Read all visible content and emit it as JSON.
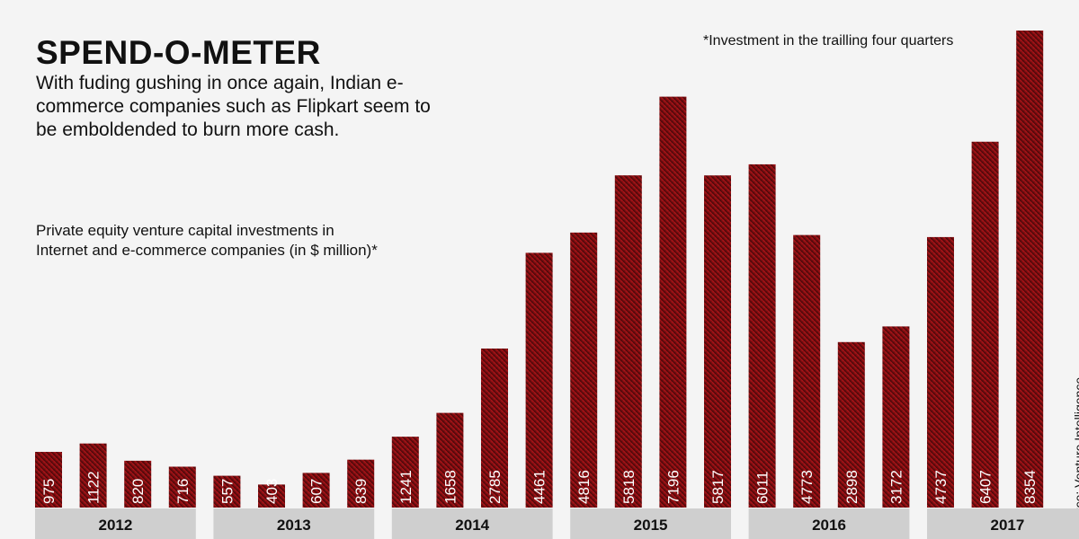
{
  "header": {
    "title": "SPEND-O-METER",
    "subtitle": "With fuding gushing in once again, Indian e-commerce companies such as Flipkart seem to be emboldended to burn more cash.",
    "description": "Private equity venture capital investments in Internet and e-commerce companies (in $ million)*",
    "note": "*Investment in the trailling four quarters",
    "source": "Source: Venture Intelligence"
  },
  "colors": {
    "bar_top": "#c0161b",
    "bar_bottom": "#3d0708",
    "year_band": "#cfcfcf",
    "background": "#f4f4f4",
    "value_label": "#ffffff"
  },
  "chart_data": {
    "type": "bar",
    "title": "SPEND-O-METER",
    "ylabel": "Private equity venture capital investments in Internet and e-commerce companies (in $ million)*",
    "groups": [
      {
        "year": "2012",
        "values": [
          975,
          1122,
          820,
          716
        ]
      },
      {
        "year": "2013",
        "values": [
          557,
          403,
          607,
          839
        ]
      },
      {
        "year": "2014",
        "values": [
          1241,
          1658,
          2785,
          4461
        ]
      },
      {
        "year": "2015",
        "values": [
          4816,
          5818,
          7196,
          5817
        ]
      },
      {
        "year": "2016",
        "values": [
          6011,
          4773,
          2898,
          3172
        ]
      },
      {
        "year": "2017",
        "values": [
          4737,
          6407,
          8354
        ]
      }
    ],
    "ylim": [
      0,
      8354
    ],
    "grid": false,
    "legend": "none"
  }
}
